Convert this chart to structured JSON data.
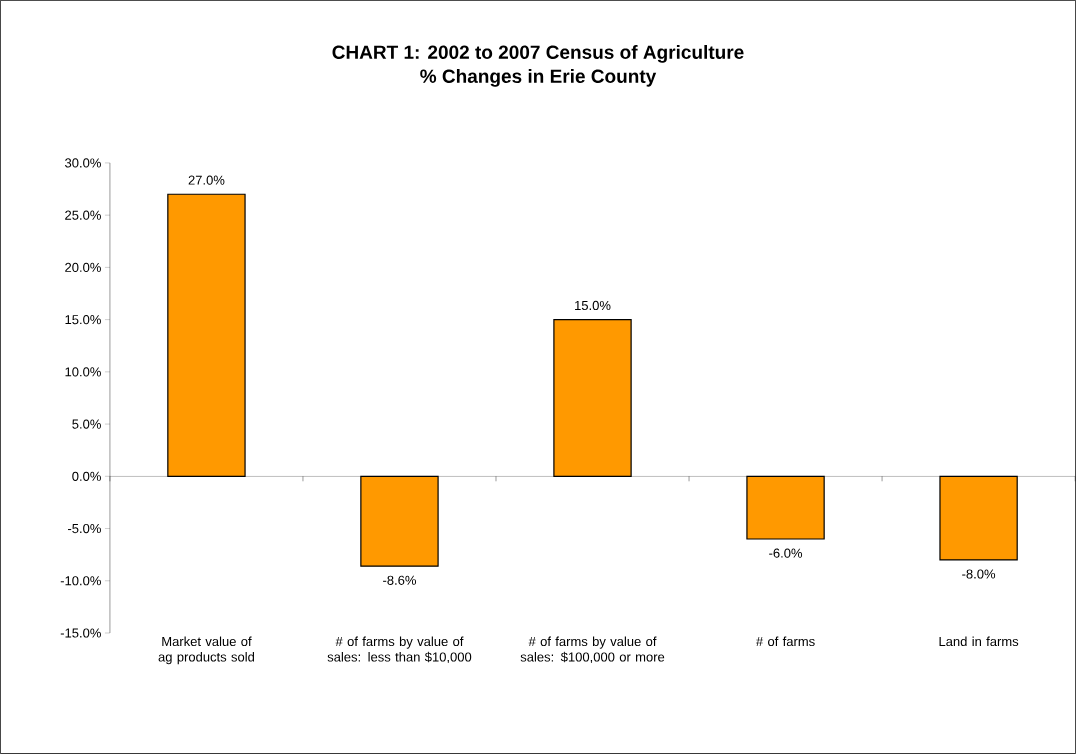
{
  "chart_data": {
    "type": "bar",
    "title": "CHART 1: 2002 to 2007 Census of Agriculture",
    "subtitle": "% Changes in Erie County",
    "categories": [
      "Market value of ag products sold",
      "# of farms by value of sales: less than $10,000",
      "# of farms by value of sales: $100,000 or more",
      "# of farms",
      "Land in farms"
    ],
    "values": [
      27.0,
      -8.6,
      15.0,
      -6.0,
      -8.0
    ],
    "value_labels": [
      "27.0%",
      "-8.6%",
      "15.0%",
      "-6.0%",
      "-8.0%"
    ],
    "color": "#ff9900",
    "ylim": [
      -15,
      30
    ],
    "yticks": [
      {
        "value": -15,
        "label": "-15.0%"
      },
      {
        "value": -10,
        "label": "-10.0%"
      },
      {
        "value": -5,
        "label": "-5.0%"
      },
      {
        "value": 0,
        "label": "0.0%"
      },
      {
        "value": 5,
        "label": "5.0%"
      },
      {
        "value": 10,
        "label": "10.0%"
      },
      {
        "value": 15,
        "label": "15.0%"
      },
      {
        "value": 20,
        "label": "20.0%"
      },
      {
        "value": 25,
        "label": "25.0%"
      },
      {
        "value": 30,
        "label": "30.0%"
      }
    ]
  }
}
